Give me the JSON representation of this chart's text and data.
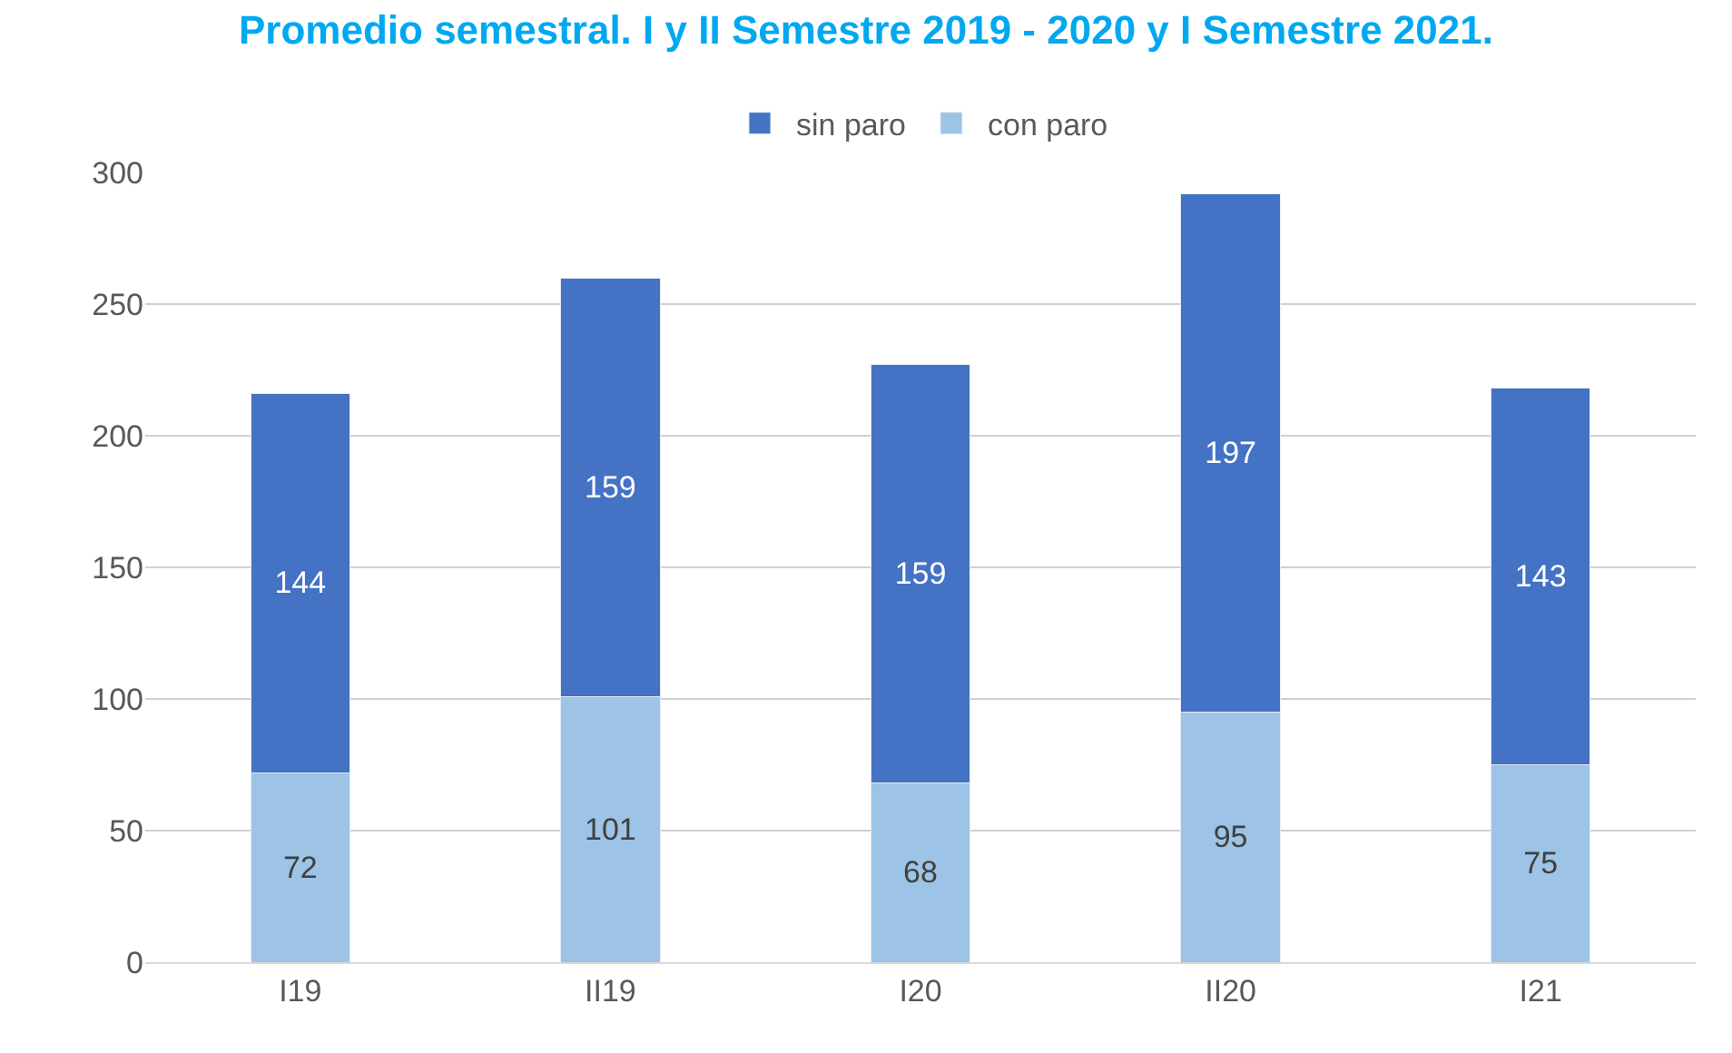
{
  "chart_data": {
    "type": "bar",
    "title": "Promedio semestral. I y II Semestre 2019 - 2020 y I Semestre 2021.",
    "categories": [
      "I19",
      "II19",
      "I20",
      "II20",
      "I21"
    ],
    "series": [
      {
        "name": "con paro",
        "color": "#9dc3e6",
        "values": [
          72,
          101,
          68,
          95,
          75
        ]
      },
      {
        "name": "sin paro",
        "color": "#4472c4",
        "values": [
          144,
          159,
          159,
          197,
          143
        ]
      }
    ],
    "stacked": true,
    "data_labels": true,
    "ylim": [
      0,
      300
    ],
    "yticks": [
      0,
      50,
      100,
      150,
      200,
      250,
      300
    ],
    "grid": "y",
    "legend": "top"
  }
}
